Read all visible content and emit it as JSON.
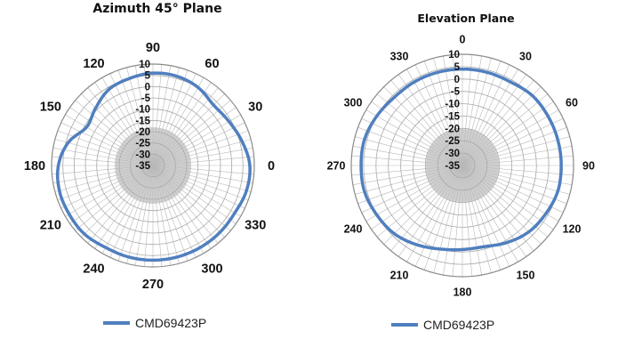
{
  "chart_data": [
    {
      "type": "polar",
      "title": "Azimuth 45° Plane",
      "r_ticks": [
        10,
        5,
        0,
        -5,
        -10,
        -15,
        -20,
        -25,
        -30,
        -35
      ],
      "rlim": [
        -35,
        10
      ],
      "angle_labels": [
        "0",
        "30",
        "60",
        "90",
        "120",
        "150",
        "180",
        "210",
        "240",
        "270",
        "300",
        "330"
      ],
      "angle_zero": "right",
      "angle_direction": "counterclockwise",
      "grid": true,
      "legend_position": "bottom",
      "series": [
        {
          "name": "CMD69423P",
          "color": "#4f7fbf",
          "angles": [
            0,
            15,
            30,
            45,
            60,
            75,
            90,
            105,
            120,
            135,
            150,
            165,
            180,
            195,
            210,
            225,
            240,
            255,
            270,
            285,
            300,
            315,
            330,
            345
          ],
          "values": [
            8,
            6,
            4,
            3,
            5,
            6,
            6,
            5,
            4,
            1,
            -1,
            4,
            7,
            8,
            8,
            8,
            7,
            7,
            7,
            7,
            7,
            7,
            7,
            8
          ]
        }
      ]
    },
    {
      "type": "polar",
      "title": "Elevation Plane",
      "r_ticks": [
        10,
        5,
        0,
        -5,
        -10,
        -15,
        -20,
        -25,
        -30,
        -35
      ],
      "rlim": [
        -35,
        10
      ],
      "angle_labels": [
        "0",
        "30",
        "60",
        "90",
        "120",
        "150",
        "180",
        "210",
        "240",
        "270",
        "300",
        "330"
      ],
      "angle_zero": "top",
      "angle_direction": "clockwise",
      "grid": true,
      "legend_position": "bottom",
      "series": [
        {
          "name": "CMD69423P",
          "color": "#4f7fbf",
          "angles": [
            0,
            15,
            30,
            45,
            60,
            75,
            90,
            105,
            120,
            135,
            150,
            165,
            180,
            195,
            210,
            225,
            240,
            255,
            270,
            285,
            300,
            315,
            330,
            345
          ],
          "values": [
            4,
            4,
            4,
            5,
            5,
            5,
            5,
            5,
            4,
            3,
            1,
            -1,
            -1,
            0,
            2,
            4,
            5,
            6,
            6,
            6,
            5,
            4,
            4,
            4
          ]
        }
      ]
    }
  ]
}
